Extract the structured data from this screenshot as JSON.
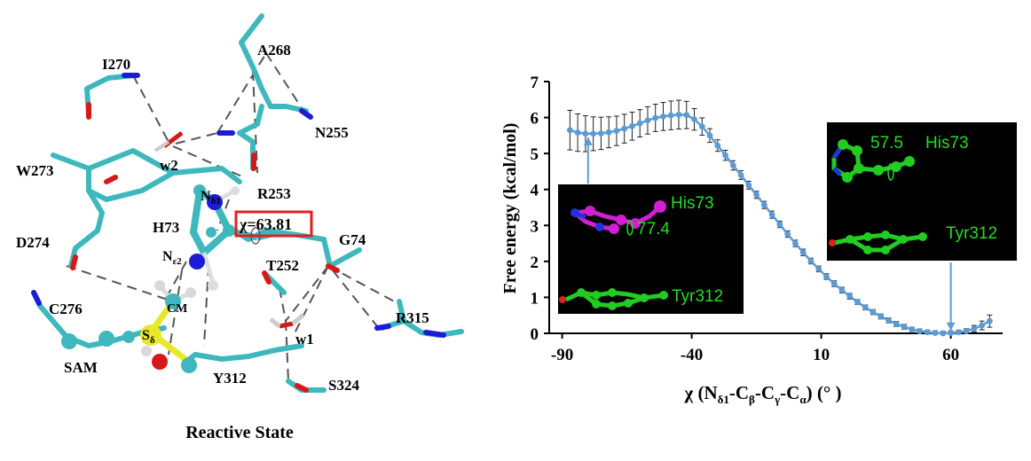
{
  "left_panel": {
    "caption": "Reactive State",
    "residue_labels": [
      "I270",
      "A268",
      "N255",
      "W273",
      "w2",
      "R253",
      "H73",
      "D274",
      "G74",
      "T252",
      "C276",
      "R315",
      "SAM",
      "w1",
      "Y312",
      "S324"
    ],
    "atom_labels": {
      "nd1_main": "N",
      "nd1_sub": "δ1",
      "ne2_main": "N",
      "ne2_sub": "ε2",
      "cm": "CM",
      "sd_main": "S",
      "sd_sub": "δ"
    },
    "chi_box": "χ=63.81",
    "colors": {
      "carbon": "#3fb8bd",
      "nitrogen": "#1c1cd6",
      "oxygen": "#d81818",
      "sulfur": "#e8e82a",
      "hydrogen": "#d8d8d8",
      "highlight_box": "#e02020"
    }
  },
  "chart_data": {
    "type": "line",
    "title": "",
    "xlabel_parts": [
      "χ (N",
      "δ1",
      "-C",
      "β",
      "-C",
      "γ",
      "-C",
      "α",
      ") (°  )"
    ],
    "ylabel": "Free energy  (kcal/mol)",
    "xlim": [
      -95,
      80
    ],
    "ylim": [
      0,
      7
    ],
    "xticks": [
      -90,
      -40,
      10,
      60
    ],
    "yticks": [
      0,
      1,
      2,
      3,
      4,
      5,
      6,
      7
    ],
    "series": [
      {
        "name": "PMF",
        "color": "#5b9bd5",
        "x": [
          -87,
          -84,
          -81,
          -78,
          -75,
          -72,
          -69,
          -66,
          -63,
          -60,
          -57,
          -54,
          -51,
          -48,
          -45,
          -42,
          -39,
          -36,
          -33,
          -30,
          -27,
          -24,
          -21,
          -18,
          -15,
          -12,
          -9,
          -6,
          -3,
          0,
          3,
          6,
          9,
          12,
          15,
          18,
          21,
          24,
          27,
          30,
          33,
          36,
          39,
          42,
          45,
          48,
          51,
          54,
          57,
          60,
          63,
          66,
          69,
          72,
          75
        ],
        "y": [
          5.65,
          5.58,
          5.55,
          5.55,
          5.56,
          5.59,
          5.63,
          5.69,
          5.76,
          5.84,
          5.92,
          5.99,
          6.03,
          6.06,
          6.08,
          6.07,
          5.95,
          5.75,
          5.5,
          5.22,
          4.95,
          4.67,
          4.4,
          4.12,
          3.85,
          3.57,
          3.3,
          3.03,
          2.76,
          2.5,
          2.25,
          2.01,
          1.79,
          1.58,
          1.38,
          1.2,
          1.03,
          0.87,
          0.72,
          0.59,
          0.47,
          0.36,
          0.26,
          0.18,
          0.11,
          0.06,
          0.03,
          0.01,
          0.0,
          0.01,
          0.03,
          0.06,
          0.13,
          0.22,
          0.34
        ],
        "err": [
          0.55,
          0.52,
          0.5,
          0.47,
          0.45,
          0.43,
          0.41,
          0.4,
          0.39,
          0.38,
          0.38,
          0.38,
          0.39,
          0.4,
          0.4,
          0.38,
          0.3,
          0.24,
          0.19,
          0.16,
          0.14,
          0.13,
          0.12,
          0.11,
          0.1,
          0.1,
          0.1,
          0.09,
          0.09,
          0.09,
          0.09,
          0.08,
          0.08,
          0.08,
          0.08,
          0.08,
          0.08,
          0.07,
          0.07,
          0.07,
          0.07,
          0.07,
          0.07,
          0.07,
          0.06,
          0.06,
          0.06,
          0.06,
          0.06,
          0.06,
          0.06,
          0.07,
          0.09,
          0.12,
          0.17
        ]
      }
    ],
    "insets": [
      {
        "label_top": "His73",
        "angle": "77.4",
        "label_bottom": "Tyr312",
        "his_color": "#d21fd2",
        "arrow_x": -80,
        "arrow_y": 5.45
      },
      {
        "label_top": "His73",
        "angle": "57.5",
        "label_bottom": "Tyr312",
        "his_color": "#22cc22",
        "arrow_x": 60,
        "arrow_y": 0.08
      }
    ]
  }
}
